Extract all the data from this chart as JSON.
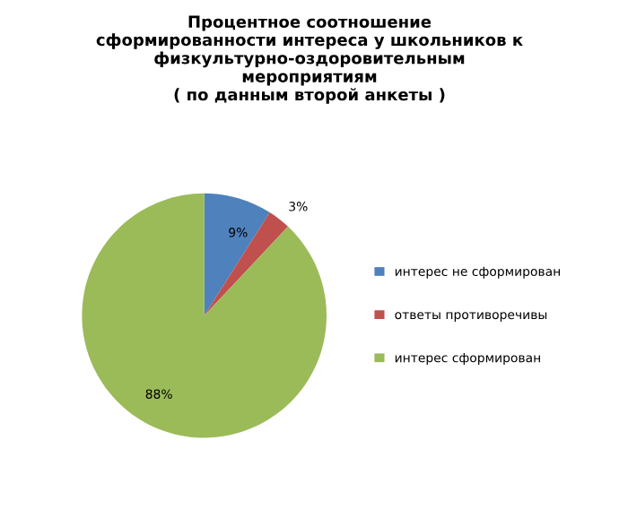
{
  "chart_data": {
    "type": "pie",
    "title": "Процентное соотношение\nсформированности интереса у школьников к\nфизкультурно-оздоровительным\nмероприятиям\n( по данным второй анкеты )",
    "categories": [
      "интерес не сформирован",
      "ответы противоречивы",
      "интерес сформирован"
    ],
    "values": [
      9,
      3,
      88
    ],
    "colors": [
      "#4f81bd",
      "#c0504d",
      "#9bbb59"
    ],
    "value_labels": [
      "9%",
      "3%",
      "88%"
    ],
    "legend": "right"
  }
}
